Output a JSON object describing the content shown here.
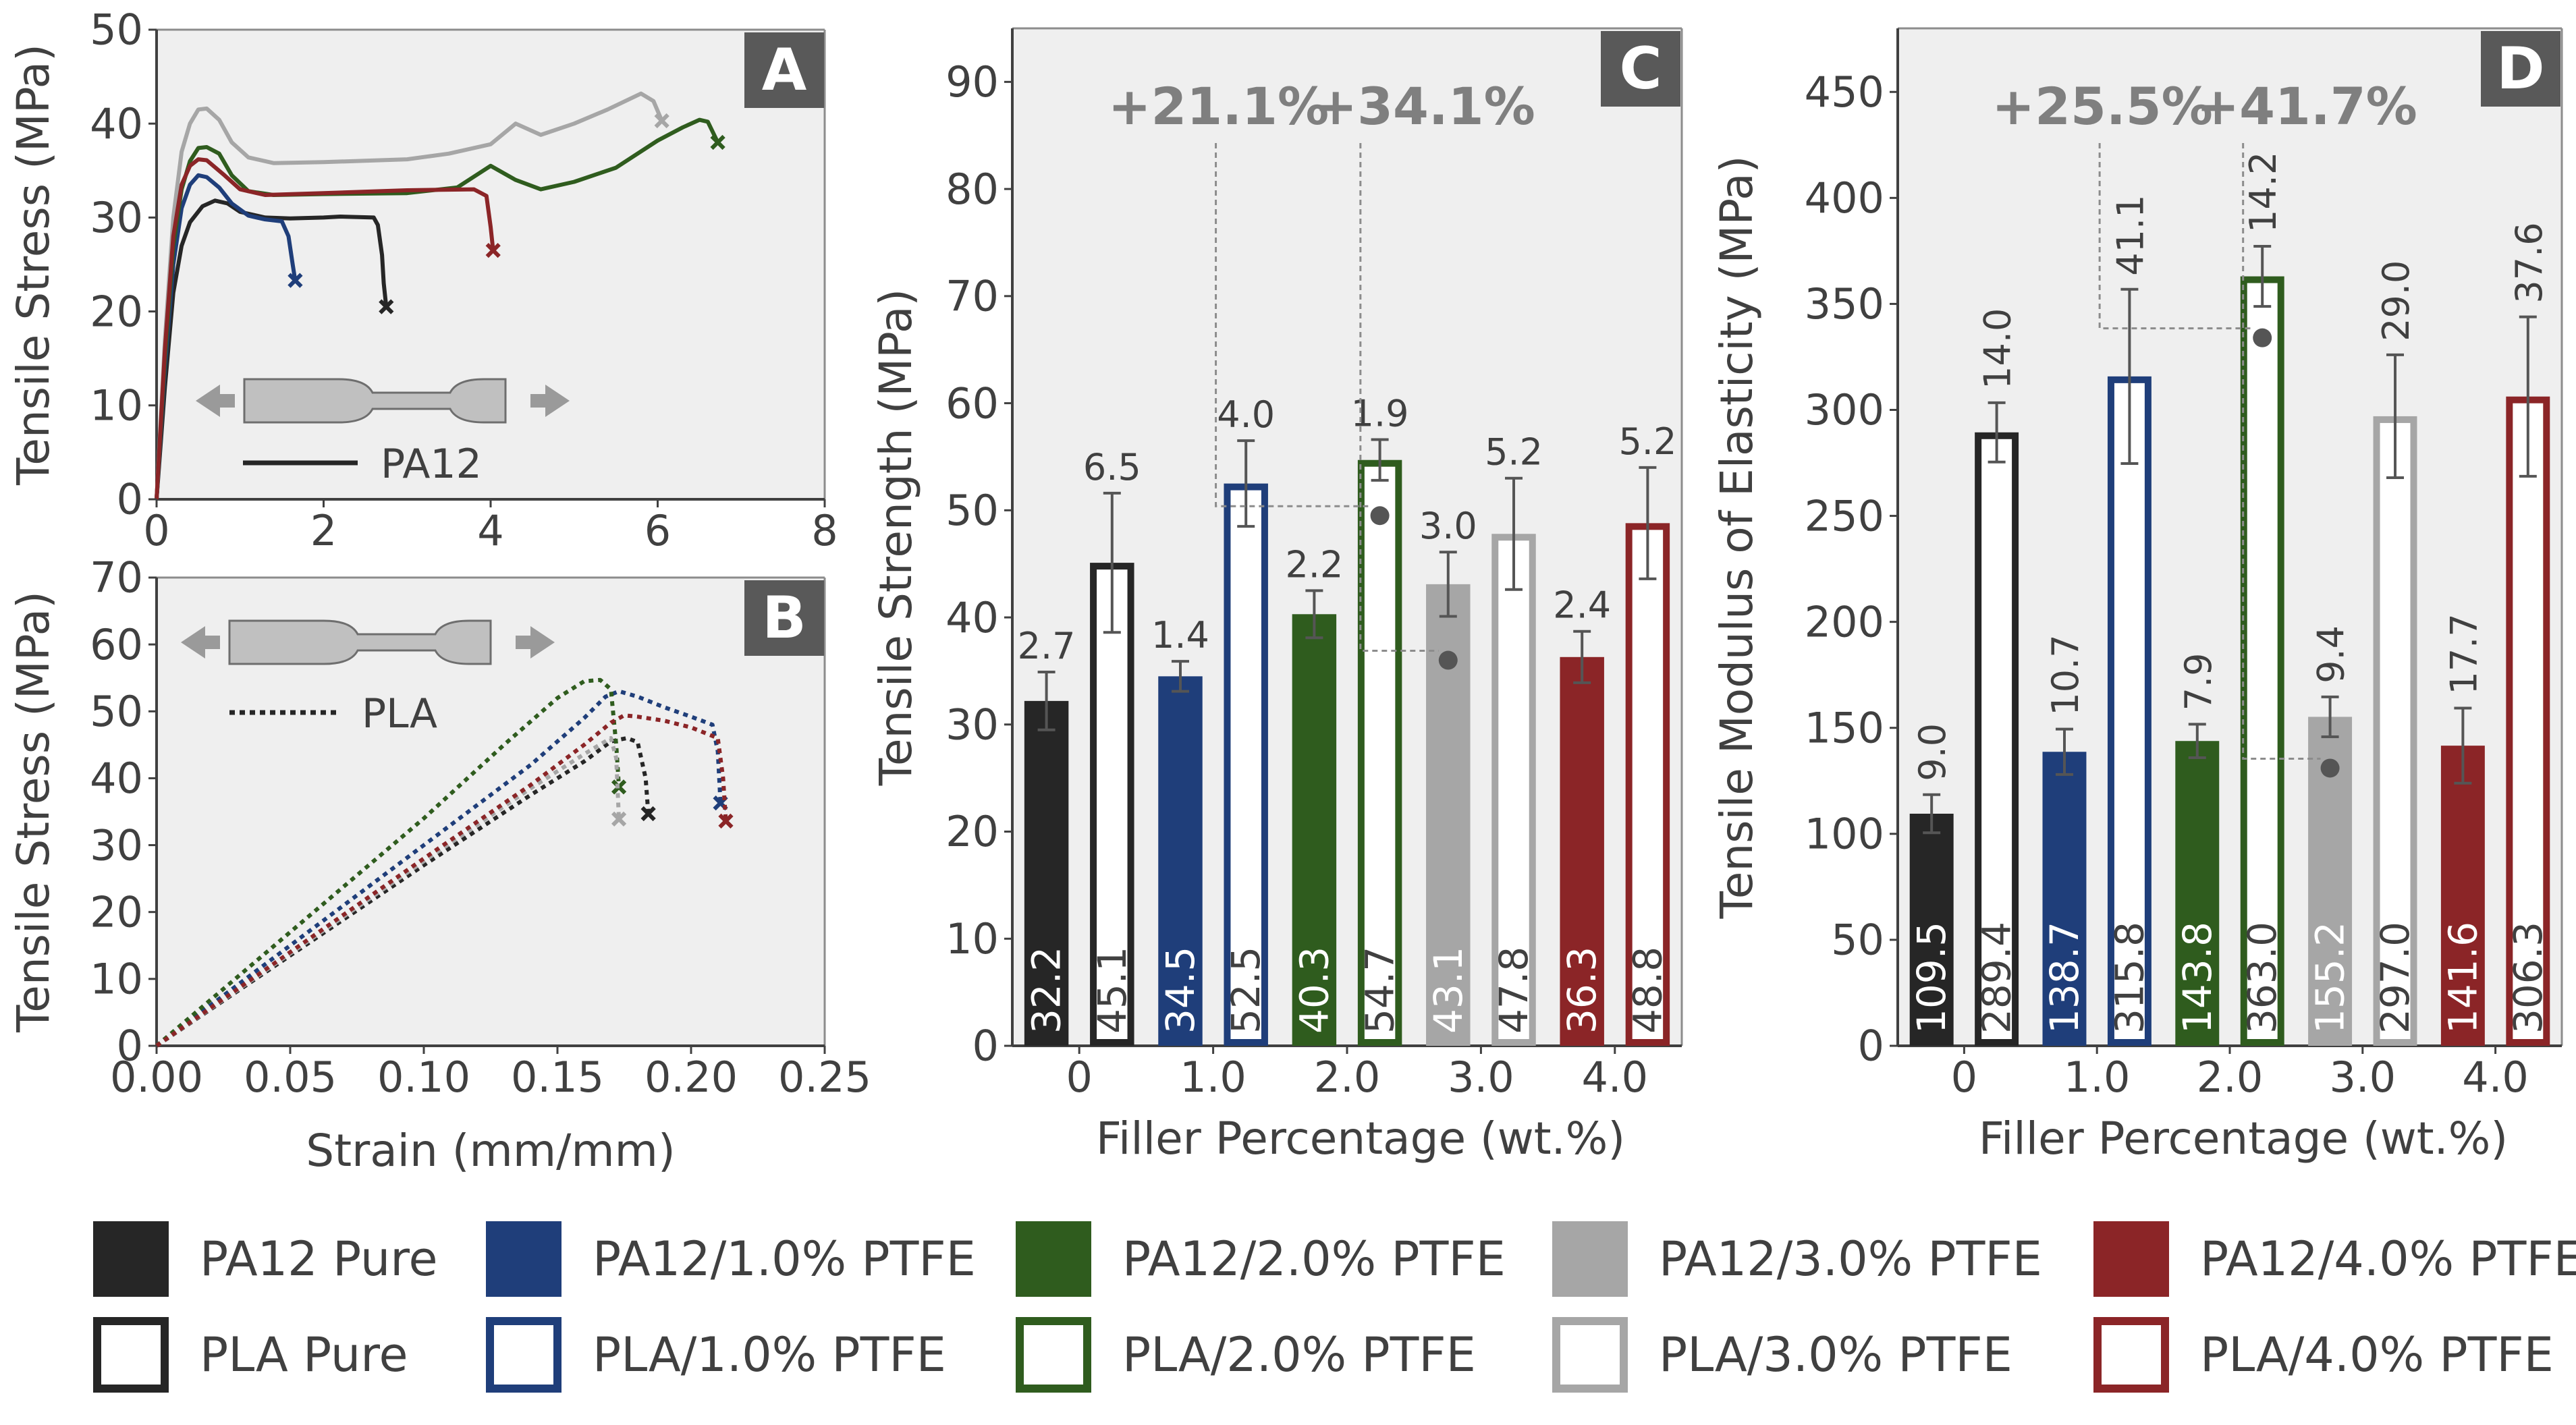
{
  "chart_data": [
    {
      "panel": "A",
      "type": "line",
      "xlabel": "",
      "ylabel": "Tensile Stress (MPa)",
      "xlim": [
        0,
        8
      ],
      "ylim": [
        0,
        50
      ],
      "xticks": [
        0,
        2,
        4,
        6,
        8
      ],
      "yticks": [
        0,
        10,
        20,
        30,
        40,
        50
      ],
      "specimen_label": "PA12",
      "grid": false,
      "series": [
        {
          "name": "PA12 Pure",
          "color": "#262626",
          "end_marker": "x",
          "points": [
            [
              0,
              0
            ],
            [
              0.1,
              12
            ],
            [
              0.2,
              22
            ],
            [
              0.3,
              27
            ],
            [
              0.4,
              29.5
            ],
            [
              0.55,
              31.2
            ],
            [
              0.7,
              31.8
            ],
            [
              0.85,
              31.5
            ],
            [
              1.0,
              30.6
            ],
            [
              1.3,
              30.0
            ],
            [
              1.6,
              29.9
            ],
            [
              2.0,
              30.0
            ],
            [
              2.2,
              30.1
            ],
            [
              2.6,
              30.0
            ],
            [
              2.65,
              29.2
            ],
            [
              2.7,
              26
            ],
            [
              2.72,
              23
            ],
            [
              2.75,
              20.5
            ]
          ]
        },
        {
          "name": "PA12/1.0% PTFE",
          "color": "#1f3e7a",
          "end_marker": "x",
          "points": [
            [
              0,
              0
            ],
            [
              0.1,
              14
            ],
            [
              0.2,
              25
            ],
            [
              0.3,
              31
            ],
            [
              0.4,
              33.5
            ],
            [
              0.5,
              34.5
            ],
            [
              0.6,
              34.3
            ],
            [
              0.75,
              33.2
            ],
            [
              0.9,
              31.5
            ],
            [
              1.1,
              30.2
            ],
            [
              1.3,
              29.8
            ],
            [
              1.5,
              29.6
            ],
            [
              1.58,
              28
            ],
            [
              1.63,
              25
            ],
            [
              1.66,
              23.3
            ]
          ]
        },
        {
          "name": "PA12/2.0% PTFE",
          "color": "#2f5c1e",
          "end_marker": "x",
          "points": [
            [
              0,
              0
            ],
            [
              0.1,
              15
            ],
            [
              0.2,
              27
            ],
            [
              0.3,
              33
            ],
            [
              0.4,
              36
            ],
            [
              0.5,
              37.4
            ],
            [
              0.6,
              37.5
            ],
            [
              0.75,
              36.8
            ],
            [
              0.9,
              34.5
            ],
            [
              1.1,
              32.8
            ],
            [
              1.4,
              32.4
            ],
            [
              2.0,
              32.5
            ],
            [
              3.0,
              32.6
            ],
            [
              3.6,
              33.2
            ],
            [
              4.0,
              35.5
            ],
            [
              4.3,
              34.0
            ],
            [
              4.6,
              33.0
            ],
            [
              5.0,
              33.8
            ],
            [
              5.5,
              35.3
            ],
            [
              6.0,
              38.2
            ],
            [
              6.3,
              39.6
            ],
            [
              6.5,
              40.4
            ],
            [
              6.6,
              40.2
            ],
            [
              6.72,
              38.0
            ]
          ]
        },
        {
          "name": "PA12/3.0% PTFE",
          "color": "#a6a6a6",
          "end_marker": "x",
          "points": [
            [
              0,
              0
            ],
            [
              0.1,
              17
            ],
            [
              0.2,
              30
            ],
            [
              0.3,
              37
            ],
            [
              0.4,
              40
            ],
            [
              0.5,
              41.5
            ],
            [
              0.6,
              41.6
            ],
            [
              0.75,
              40.4
            ],
            [
              0.9,
              38.0
            ],
            [
              1.1,
              36.4
            ],
            [
              1.4,
              35.8
            ],
            [
              2.0,
              35.9
            ],
            [
              3.0,
              36.2
            ],
            [
              3.5,
              36.8
            ],
            [
              4.0,
              37.8
            ],
            [
              4.3,
              40.0
            ],
            [
              4.6,
              38.8
            ],
            [
              5.0,
              40.0
            ],
            [
              5.4,
              41.5
            ],
            [
              5.8,
              43.2
            ],
            [
              5.95,
              42.4
            ],
            [
              6.05,
              40.3
            ]
          ]
        },
        {
          "name": "PA12/4.0% PTFE",
          "color": "#8b2527",
          "end_marker": "x",
          "points": [
            [
              0,
              0
            ],
            [
              0.1,
              16
            ],
            [
              0.2,
              28
            ],
            [
              0.3,
              33.5
            ],
            [
              0.4,
              35.5
            ],
            [
              0.5,
              36.2
            ],
            [
              0.6,
              36.1
            ],
            [
              0.8,
              34.6
            ],
            [
              1.0,
              33.0
            ],
            [
              1.3,
              32.4
            ],
            [
              2.0,
              32.6
            ],
            [
              3.0,
              32.9
            ],
            [
              3.8,
              33.0
            ],
            [
              3.95,
              32.3
            ],
            [
              4.0,
              29
            ],
            [
              4.03,
              26.5
            ]
          ]
        }
      ]
    },
    {
      "panel": "B",
      "type": "line",
      "xlabel": "Strain (mm/mm)",
      "ylabel": "Tensile Stress (MPa)",
      "xlim": [
        0,
        0.25
      ],
      "ylim": [
        0,
        70
      ],
      "xticks": [
        "0.00",
        "0.05",
        "0.10",
        "0.15",
        "0.20",
        "0.25"
      ],
      "yticks": [
        0,
        10,
        20,
        30,
        40,
        50,
        60,
        70
      ],
      "specimen_label": "PLA",
      "grid": false,
      "series": [
        {
          "name": "PLA Pure",
          "color": "#262626",
          "end_marker": "x",
          "points": [
            [
              0,
              0
            ],
            [
              0.05,
              13.5
            ],
            [
              0.1,
              27
            ],
            [
              0.14,
              37.5
            ],
            [
              0.16,
              42.5
            ],
            [
              0.17,
              45.5
            ],
            [
              0.176,
              46.0
            ],
            [
              0.18,
              45.4
            ],
            [
              0.183,
              40
            ],
            [
              0.184,
              34.7
            ]
          ]
        },
        {
          "name": "PLA/1.0% PTFE",
          "color": "#1f3e7a",
          "end_marker": "x",
          "points": [
            [
              0,
              0
            ],
            [
              0.05,
              15
            ],
            [
              0.1,
              30
            ],
            [
              0.14,
              42
            ],
            [
              0.16,
              49
            ],
            [
              0.168,
              52.2
            ],
            [
              0.173,
              53.0
            ],
            [
              0.18,
              52.2
            ],
            [
              0.19,
              50.6
            ],
            [
              0.2,
              49.2
            ],
            [
              0.208,
              48.0
            ],
            [
              0.21,
              44
            ],
            [
              0.211,
              36.3
            ]
          ]
        },
        {
          "name": "PLA/2.0% PTFE",
          "color": "#2f5c1e",
          "end_marker": "x",
          "points": [
            [
              0,
              0
            ],
            [
              0.05,
              17
            ],
            [
              0.1,
              34
            ],
            [
              0.13,
              45
            ],
            [
              0.15,
              52
            ],
            [
              0.16,
              54.5
            ],
            [
              0.166,
              54.7
            ],
            [
              0.17,
              53.3
            ],
            [
              0.172,
              45
            ],
            [
              0.173,
              38.7
            ]
          ]
        },
        {
          "name": "PLA/3.0% PTFE",
          "color": "#a6a6a6",
          "end_marker": "x",
          "points": [
            [
              0,
              0
            ],
            [
              0.05,
              13.8
            ],
            [
              0.1,
              27.6
            ],
            [
              0.14,
              38.5
            ],
            [
              0.16,
              43.6
            ],
            [
              0.17,
              46.0
            ],
            [
              0.172,
              43
            ],
            [
              0.173,
              33.9
            ]
          ]
        },
        {
          "name": "PLA/4.0% PTFE",
          "color": "#8b2527",
          "end_marker": "x",
          "points": [
            [
              0,
              0
            ],
            [
              0.05,
              14
            ],
            [
              0.1,
              28
            ],
            [
              0.14,
              39
            ],
            [
              0.16,
              45
            ],
            [
              0.17,
              48.3
            ],
            [
              0.175,
              49.4
            ],
            [
              0.18,
              49.2
            ],
            [
              0.19,
              48.6
            ],
            [
              0.2,
              47.6
            ],
            [
              0.21,
              46.0
            ],
            [
              0.212,
              40
            ],
            [
              0.213,
              33.6
            ]
          ]
        }
      ]
    },
    {
      "panel": "C",
      "type": "bar",
      "xlabel": "Filler Percentage (wt.%)",
      "ylabel": "Tensile Strength (MPa)",
      "categories": [
        "0",
        "1.0",
        "2.0",
        "3.0",
        "4.0"
      ],
      "ylim": [
        0,
        95
      ],
      "yticks": [
        0,
        10,
        20,
        30,
        40,
        50,
        60,
        70,
        80,
        90
      ],
      "series": [
        {
          "name": "PA12",
          "style": "filled",
          "values": [
            32.2,
            34.5,
            40.3,
            43.1,
            36.3
          ],
          "errors": [
            2.7,
            1.4,
            2.2,
            3.0,
            2.4
          ],
          "value_labels": [
            "32.2",
            "34.5",
            "40.3",
            "43.1",
            "36.3"
          ],
          "error_labels": [
            "2.7",
            "1.4",
            "2.2",
            "3.0",
            "2.4"
          ]
        },
        {
          "name": "PLA",
          "style": "outlined",
          "values": [
            45.1,
            52.5,
            54.7,
            47.8,
            48.8
          ],
          "errors": [
            6.5,
            4.0,
            1.9,
            5.2,
            5.2
          ],
          "value_labels": [
            "45.1",
            "52.5",
            "54.7",
            "47.8",
            "48.8"
          ],
          "error_labels": [
            "6.5",
            "4.0",
            "1.9",
            "5.2",
            "5.2"
          ]
        }
      ],
      "annotations": [
        {
          "text": "+21.1%",
          "refers_to": "PLA/2.0% PTFE vs PLA Pure",
          "dot_value": 49.5
        },
        {
          "text": "+34.1%",
          "refers_to": "PA12/3.0% PTFE vs PA12 Pure",
          "dot_value": 36.0
        }
      ]
    },
    {
      "panel": "D",
      "type": "bar",
      "xlabel": "Filler Percentage (wt.%)",
      "ylabel": "Tensile Modulus of Elasticity (MPa)",
      "categories": [
        "0",
        "1.0",
        "2.0",
        "3.0",
        "4.0"
      ],
      "ylim": [
        0,
        480
      ],
      "yticks": [
        0,
        50,
        100,
        150,
        200,
        250,
        300,
        350,
        400,
        450
      ],
      "series": [
        {
          "name": "PA12",
          "style": "filled",
          "values": [
            109.5,
            138.7,
            143.8,
            155.2,
            141.6
          ],
          "errors": [
            9.0,
            10.7,
            7.9,
            9.4,
            17.7
          ],
          "value_labels": [
            "109.5",
            "138.7",
            "143.8",
            "155.2",
            "141.6"
          ],
          "error_labels": [
            "9.0",
            "10.7",
            "7.9",
            "9.4",
            "17.7"
          ]
        },
        {
          "name": "PLA",
          "style": "outlined",
          "values": [
            289.4,
            315.8,
            363.0,
            297.0,
            306.3
          ],
          "errors": [
            14.0,
            41.1,
            14.2,
            29.0,
            37.6
          ],
          "value_labels": [
            "289.4",
            "315.8",
            "363.0",
            "297.0",
            "306.3"
          ],
          "error_labels": [
            "14.0",
            "41.1",
            "14.2",
            "29.0",
            "37.6"
          ]
        }
      ],
      "annotations": [
        {
          "text": "+25.5%",
          "refers_to": "PLA/2.0% PTFE vs PLA Pure",
          "dot_value": 334
        },
        {
          "text": "+41.7%",
          "refers_to": "PA12/3.0% PTFE vs PA12 Pure",
          "dot_value": 131
        }
      ]
    }
  ],
  "panel_labels": [
    "A",
    "B",
    "C",
    "D"
  ],
  "colors": {
    "plot_background": "#efefef",
    "badge": "#595959",
    "pure": "#262626",
    "ptfe_1": "#1f3e7a",
    "ptfe_2": "#2f5c1e",
    "ptfe_3": "#a6a6a6",
    "ptfe_4": "#8b2527",
    "annotation_text": "#7f7f7f"
  },
  "legend": {
    "position": "bottom",
    "items": [
      {
        "label": "PA12 Pure",
        "color": "#262626",
        "style": "filled"
      },
      {
        "label": "PA12/1.0% PTFE",
        "color": "#1f3e7a",
        "style": "filled"
      },
      {
        "label": "PA12/2.0% PTFE",
        "color": "#2f5c1e",
        "style": "filled"
      },
      {
        "label": "PA12/3.0% PTFE",
        "color": "#a6a6a6",
        "style": "filled"
      },
      {
        "label": "PA12/4.0% PTFE",
        "color": "#8b2527",
        "style": "filled"
      },
      {
        "label": "PLA Pure",
        "color": "#262626",
        "style": "outlined"
      },
      {
        "label": "PLA/1.0% PTFE",
        "color": "#1f3e7a",
        "style": "outlined"
      },
      {
        "label": "PLA/2.0% PTFE",
        "color": "#2f5c1e",
        "style": "outlined"
      },
      {
        "label": "PLA/3.0% PTFE",
        "color": "#a6a6a6",
        "style": "outlined"
      },
      {
        "label": "PLA/4.0% PTFE",
        "color": "#8b2527",
        "style": "outlined"
      }
    ]
  }
}
